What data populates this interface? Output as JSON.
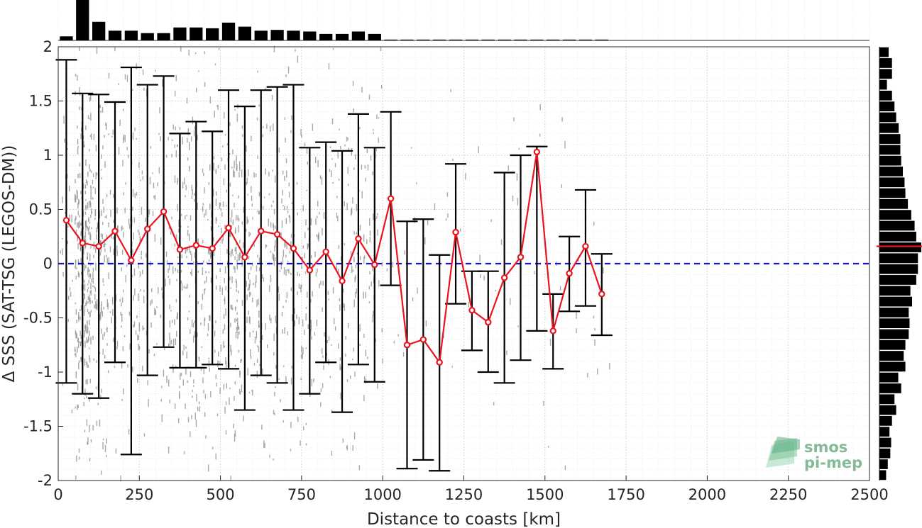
{
  "chart_data": {
    "type": "scatter",
    "xlabel": "Distance to coasts [km]",
    "ylabel": "Δ SSS (SAT-TSG (LEGOS-DM))",
    "xlim": [
      0,
      2500
    ],
    "ylim": [
      -2,
      2
    ],
    "x_ticks": [
      0,
      250,
      500,
      750,
      1000,
      1250,
      1500,
      1750,
      2000,
      2250,
      2500
    ],
    "y_ticks": [
      -2,
      -1.5,
      -1,
      -0.5,
      0,
      0.5,
      1,
      1.5,
      2
    ],
    "x_tick_labels": [
      "0",
      "250",
      "500",
      "750",
      "1000",
      "1250",
      "1500",
      "1750",
      "2000",
      "2250",
      "2500"
    ],
    "y_tick_labels": [
      "-2",
      "-1.5",
      "-1",
      "-0.5",
      "0",
      "0.5",
      "1",
      "1.5",
      "2"
    ],
    "grid": true,
    "zero_line": {
      "y": 0,
      "color": "#1414d6",
      "style": "dashed"
    },
    "mean_series": {
      "color": "#e8141e",
      "x": [
        25,
        75,
        125,
        175,
        225,
        275,
        325,
        375,
        425,
        475,
        525,
        575,
        625,
        675,
        725,
        775,
        825,
        875,
        925,
        975,
        1025,
        1075,
        1125,
        1175,
        1225,
        1275,
        1325,
        1375,
        1425,
        1475,
        1525,
        1575,
        1625,
        1675
      ],
      "y": [
        0.4,
        0.19,
        0.16,
        0.3,
        0.03,
        0.32,
        0.48,
        0.13,
        0.17,
        0.14,
        0.33,
        0.06,
        0.3,
        0.27,
        0.14,
        -0.06,
        0.11,
        -0.16,
        0.23,
        -0.01,
        0.6,
        -0.75,
        -0.7,
        -0.91,
        0.29,
        -0.43,
        -0.54,
        -0.13,
        0.06,
        1.03,
        -0.62,
        -0.09,
        0.16,
        -0.28
      ]
    },
    "error_bars": {
      "color": "#000000",
      "low": [
        -1.1,
        -1.2,
        -1.24,
        -0.91,
        -1.76,
        -1.03,
        -0.77,
        -0.96,
        -0.96,
        -0.93,
        -0.97,
        -1.35,
        -1.03,
        -1.1,
        -1.35,
        -1.2,
        -0.91,
        -1.37,
        -0.93,
        -1.09,
        -0.2,
        -1.89,
        -1.81,
        -1.91,
        -0.37,
        -0.8,
        -1.0,
        -1.1,
        -0.89,
        -0.62,
        -0.97,
        -0.44,
        -0.39,
        -0.66
      ],
      "high": [
        1.88,
        1.57,
        1.56,
        1.49,
        1.81,
        1.65,
        1.73,
        1.2,
        1.31,
        1.22,
        1.6,
        1.45,
        1.6,
        1.63,
        1.65,
        1.07,
        1.12,
        1.04,
        1.38,
        1.07,
        1.4,
        0.39,
        0.41,
        0.08,
        0.92,
        -0.07,
        -0.07,
        0.84,
        1.0,
        1.08,
        -0.28,
        0.25,
        0.68,
        0.09
      ]
    },
    "scatter_points": {
      "color": "#8c8c8c",
      "description_free": true
    },
    "top_histogram": {
      "color": "#000000",
      "bin_centers": [
        25,
        75,
        125,
        175,
        225,
        275,
        325,
        375,
        425,
        475,
        525,
        575,
        625,
        675,
        725,
        775,
        825,
        875,
        925,
        975,
        1025,
        1075,
        1125,
        1175,
        1225,
        1275,
        1325,
        1375,
        1425,
        1475,
        1525,
        1575,
        1625,
        1675
      ],
      "values": [
        0.1,
        1.0,
        0.46,
        0.24,
        0.24,
        0.18,
        0.18,
        0.32,
        0.32,
        0.3,
        0.44,
        0.34,
        0.24,
        0.26,
        0.24,
        0.22,
        0.16,
        0.16,
        0.22,
        0.16,
        0.02,
        0.02,
        0.02,
        0.02,
        0.02,
        0.02,
        0.02,
        0.02,
        0.02,
        0.02,
        0.02,
        0.02,
        0.02,
        0.02
      ]
    },
    "right_histogram": {
      "color": "#000000",
      "bin_centers": [
        1.95,
        1.85,
        1.75,
        1.65,
        1.55,
        1.45,
        1.35,
        1.25,
        1.15,
        1.05,
        0.95,
        0.85,
        0.75,
        0.65,
        0.55,
        0.45,
        0.35,
        0.25,
        0.15,
        0.05,
        -0.05,
        -0.15,
        -0.25,
        -0.35,
        -0.45,
        -0.55,
        -0.65,
        -0.75,
        -0.85,
        -0.95,
        -1.05,
        -1.15,
        -1.25,
        -1.35,
        -1.45,
        -1.55,
        -1.65,
        -1.75,
        -1.85,
        -1.95
      ],
      "values": [
        0.22,
        0.3,
        0.3,
        0.18,
        0.3,
        0.36,
        0.4,
        0.46,
        0.5,
        0.5,
        0.52,
        0.56,
        0.6,
        0.62,
        0.68,
        0.76,
        0.84,
        0.88,
        1.0,
        0.92,
        0.92,
        0.88,
        0.74,
        0.78,
        0.7,
        0.72,
        0.7,
        0.62,
        0.58,
        0.62,
        0.45,
        0.52,
        0.36,
        0.4,
        0.3,
        0.24,
        0.28,
        0.26,
        0.2,
        0.16
      ]
    },
    "mean_marker": {
      "y": 0.16,
      "color": "#e8141e"
    },
    "watermark": {
      "line1": "smos",
      "line2": "pi-mep"
    }
  }
}
